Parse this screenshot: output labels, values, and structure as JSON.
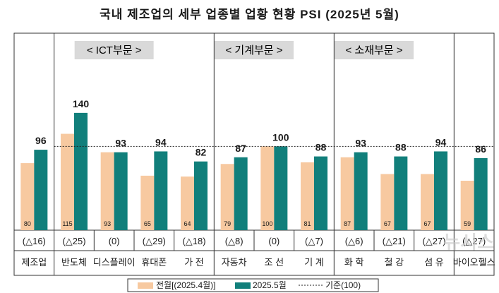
{
  "title": "국내 제조업의 세부 업종별 업황 현황 PSI (2025년 5월)",
  "watermark": "뉴시스",
  "colors": {
    "prev": "#F7C9A0",
    "curr": "#117F7B",
    "frame": "#333333"
  },
  "sections": [
    {
      "label": "< ICT부문 >",
      "from": 1,
      "to": 4
    },
    {
      "label": "< 기계부문 >",
      "from": 5,
      "to": 7
    },
    {
      "label": "< 소재부문 >",
      "from": 8,
      "to": 10
    }
  ],
  "legend": {
    "prev": "전월[(2025.4월)]",
    "curr": "2025.5월",
    "base": "기준(100)"
  },
  "chart_data": {
    "type": "bar",
    "title": "국내 제조업의 세부 업종별 업황 현황 PSI (2025년 5월)",
    "categories": [
      "제조업",
      "반도체",
      "디스플레이",
      "휴대폰",
      "가 전",
      "자동차",
      "조 선",
      "기 계",
      "화 학",
      "철 강",
      "섬 유",
      "바이오헬스"
    ],
    "series": [
      {
        "name": "전월[(2025.4월)]",
        "values": [
          80,
          115,
          93,
          65,
          64,
          79,
          100,
          81,
          87,
          67,
          67,
          59
        ]
      },
      {
        "name": "2025.5월",
        "values": [
          96,
          140,
          93,
          94,
          82,
          87,
          100,
          88,
          93,
          88,
          94,
          86
        ]
      }
    ],
    "diffs": [
      "(△16)",
      "(△25)",
      "(0)",
      "(△29)",
      "(△18)",
      "(△8)",
      "(0)",
      "(△7)",
      "(△6)",
      "(△21)",
      "(△27)",
      "(△27)"
    ],
    "reference_line": 100,
    "ylim": [
      0,
      150
    ],
    "grid": false,
    "legend_position": "bottom"
  }
}
